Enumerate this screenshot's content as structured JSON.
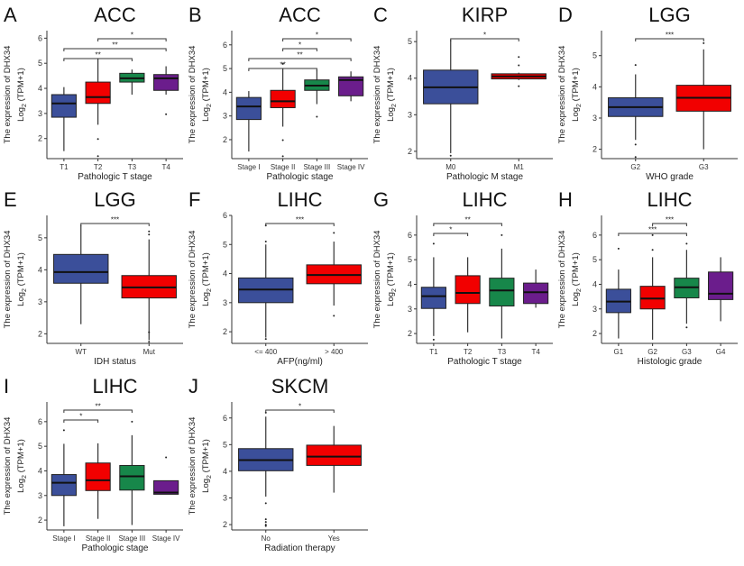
{
  "colors": {
    "blue": "#3b4f9a",
    "red": "#f20000",
    "green": "#17874a",
    "purple": "#6b1d8c"
  },
  "chart_data": [
    {
      "type": "box",
      "letter": "A",
      "title": "ACC",
      "xlabel": "Pathologic T stage",
      "ylabel": [
        "The expression of DHX34",
        "Log",
        "2",
        " (TPM+1)"
      ],
      "ylim": [
        1.2,
        6.3
      ],
      "yticks": [
        2,
        3,
        4,
        5,
        6
      ],
      "groups": [
        {
          "label": "T1",
          "color": "blue",
          "lo": 1.5,
          "q1": 2.85,
          "median": 3.4,
          "q3": 3.75,
          "hi": 4.05,
          "outliers": []
        },
        {
          "label": "T2",
          "color": "red",
          "lo": 2.55,
          "q1": 3.4,
          "median": 3.65,
          "q3": 4.25,
          "hi": 5.2,
          "outliers": [
            1.98,
            1.3
          ]
        },
        {
          "label": "T3",
          "color": "green",
          "lo": 3.75,
          "q1": 4.25,
          "median": 4.4,
          "q3": 4.6,
          "hi": 4.75,
          "outliers": []
        },
        {
          "label": "T4",
          "color": "purple",
          "lo": 3.75,
          "q1": 3.92,
          "median": 4.4,
          "q3": 4.55,
          "hi": 4.88,
          "outliers": [
            2.97
          ]
        }
      ],
      "brackets": [
        {
          "from": 0,
          "to": 2,
          "label": "**"
        },
        {
          "from": 0,
          "to": 3,
          "label": "**"
        },
        {
          "from": 1,
          "to": 3,
          "label": "*"
        }
      ]
    },
    {
      "type": "box",
      "letter": "B",
      "title": "ACC",
      "xlabel": "Pathologic stage",
      "ylabel": [
        "The expression of DHX34",
        "Log",
        "2",
        " (TPM+1)"
      ],
      "ylim": [
        1.2,
        6.6
      ],
      "yticks": [
        2,
        3,
        4,
        5,
        6
      ],
      "groups": [
        {
          "label": "Stage I",
          "color": "blue",
          "lo": 1.5,
          "q1": 2.85,
          "median": 3.4,
          "q3": 3.78,
          "hi": 4.05,
          "outliers": []
        },
        {
          "label": "Stage II",
          "color": "red",
          "lo": 2.55,
          "q1": 3.35,
          "median": 3.62,
          "q3": 4.08,
          "hi": 5.0,
          "outliers": [
            5.2,
            1.98,
            1.3
          ]
        },
        {
          "label": "Stage III",
          "color": "green",
          "lo": 3.5,
          "q1": 4.08,
          "median": 4.28,
          "q3": 4.52,
          "hi": 4.95,
          "outliers": [
            2.97
          ]
        },
        {
          "label": "Stage IV",
          "color": "purple",
          "lo": 3.62,
          "q1": 3.85,
          "median": 4.52,
          "q3": 4.65,
          "hi": 4.88,
          "outliers": []
        }
      ],
      "brackets": [
        {
          "from": 0,
          "to": 2,
          "label": "**"
        },
        {
          "from": 0,
          "to": 3,
          "label": "**"
        },
        {
          "from": 1,
          "to": 2,
          "label": "*"
        },
        {
          "from": 1,
          "to": 3,
          "label": "*"
        }
      ]
    },
    {
      "type": "box",
      "letter": "C",
      "title": "KIRP",
      "xlabel": "Pathologic M stage",
      "ylabel": [
        "The expression of DHX34",
        "Log",
        "2",
        " (TPM+1)"
      ],
      "ylim": [
        1.8,
        5.3
      ],
      "yticks": [
        2,
        3,
        4,
        5
      ],
      "groups": [
        {
          "label": "M0",
          "color": "blue",
          "lo": 1.95,
          "q1": 3.3,
          "median": 3.75,
          "q3": 4.22,
          "hi": 5.05,
          "outliers": [
            1.88
          ]
        },
        {
          "label": "M1",
          "color": "red",
          "lo": 3.95,
          "q1": 3.98,
          "median": 4.05,
          "q3": 4.12,
          "hi": 4.15,
          "outliers": [
            4.58,
            4.35,
            3.78
          ]
        }
      ],
      "brackets": [
        {
          "from": 0,
          "to": 1,
          "label": "*"
        }
      ]
    },
    {
      "type": "box",
      "letter": "D",
      "title": "LGG",
      "xlabel": "WHO grade",
      "ylabel": [
        "The expression of DHX34",
        "Log",
        "2",
        " (TPM+1)"
      ],
      "ylim": [
        1.7,
        5.8
      ],
      "yticks": [
        2,
        3,
        4,
        5
      ],
      "groups": [
        {
          "label": "G2",
          "color": "blue",
          "lo": 2.3,
          "q1": 3.05,
          "median": 3.35,
          "q3": 3.65,
          "hi": 4.4,
          "outliers": [
            4.7,
            2.15,
            1.75
          ]
        },
        {
          "label": "G3",
          "color": "red",
          "lo": 2.0,
          "q1": 3.22,
          "median": 3.65,
          "q3": 4.05,
          "hi": 5.2,
          "outliers": [
            5.4
          ]
        }
      ],
      "brackets": [
        {
          "from": 0,
          "to": 1,
          "label": "***"
        }
      ]
    },
    {
      "type": "box",
      "letter": "E",
      "title": "LGG",
      "xlabel": "IDH status",
      "ylabel": [
        "The expression of DHX34",
        "Log",
        "2",
        " (TPM+1)"
      ],
      "ylim": [
        1.7,
        5.7
      ],
      "yticks": [
        2,
        3,
        4,
        5
      ],
      "groups": [
        {
          "label": "WT",
          "color": "blue",
          "lo": 2.3,
          "q1": 3.58,
          "median": 3.93,
          "q3": 4.48,
          "hi": 5.4,
          "outliers": []
        },
        {
          "label": "Mut",
          "color": "red",
          "lo": 1.8,
          "q1": 3.12,
          "median": 3.45,
          "q3": 3.82,
          "hi": 4.95,
          "outliers": [
            5.2,
            5.1,
            2.05,
            1.75
          ]
        }
      ],
      "brackets": [
        {
          "from": 0,
          "to": 1,
          "label": "***"
        }
      ]
    },
    {
      "type": "box",
      "letter": "F",
      "title": "LIHC",
      "xlabel": "AFP(ng/ml)",
      "ylabel": [
        "The expression of DHX34",
        "Log",
        "2",
        " (TPM+1)"
      ],
      "ylim": [
        1.6,
        6.0
      ],
      "yticks": [
        2,
        3,
        4,
        5,
        6
      ],
      "groups": [
        {
          "label": "<= 400",
          "color": "blue",
          "lo": 1.8,
          "q1": 3.0,
          "median": 3.45,
          "q3": 3.85,
          "hi": 5.0,
          "outliers": [
            5.1,
            5.65,
            1.75
          ]
        },
        {
          "label": "> 400",
          "color": "red",
          "lo": 2.9,
          "q1": 3.65,
          "median": 3.95,
          "q3": 4.3,
          "hi": 5.1,
          "outliers": [
            5.4,
            2.55
          ]
        }
      ],
      "brackets": [
        {
          "from": 0,
          "to": 1,
          "label": "***"
        }
      ]
    },
    {
      "type": "box",
      "letter": "G",
      "title": "LIHC",
      "xlabel": "Pathologic T stage",
      "ylabel": [
        "The expression of DHX34",
        "Log",
        "2",
        " (TPM+1)"
      ],
      "ylim": [
        1.6,
        6.8
      ],
      "yticks": [
        2,
        3,
        4,
        5,
        6
      ],
      "groups": [
        {
          "label": "T1",
          "color": "blue",
          "lo": 1.9,
          "q1": 3.02,
          "median": 3.52,
          "q3": 3.88,
          "hi": 5.1,
          "outliers": [
            5.65,
            1.75
          ]
        },
        {
          "label": "T2",
          "color": "red",
          "lo": 2.05,
          "q1": 3.22,
          "median": 3.65,
          "q3": 4.35,
          "hi": 5.1,
          "outliers": []
        },
        {
          "label": "T3",
          "color": "green",
          "lo": 1.8,
          "q1": 3.12,
          "median": 3.75,
          "q3": 4.25,
          "hi": 5.45,
          "outliers": [
            6.0
          ]
        },
        {
          "label": "T4",
          "color": "purple",
          "lo": 3.05,
          "q1": 3.22,
          "median": 3.68,
          "q3": 4.05,
          "hi": 4.6,
          "outliers": []
        }
      ],
      "brackets": [
        {
          "from": 0,
          "to": 1,
          "label": "*"
        },
        {
          "from": 0,
          "to": 2,
          "label": "**"
        }
      ]
    },
    {
      "type": "box",
      "letter": "H",
      "title": "LIHC",
      "xlabel": "Histologic grade",
      "ylabel": [
        "The expression of DHX34",
        "Log",
        "2",
        " (TPM+1)"
      ],
      "ylim": [
        1.6,
        6.8
      ],
      "yticks": [
        2,
        3,
        4,
        5,
        6
      ],
      "groups": [
        {
          "label": "G1",
          "color": "blue",
          "lo": 1.8,
          "q1": 2.85,
          "median": 3.3,
          "q3": 3.8,
          "hi": 4.6,
          "outliers": [
            5.45
          ]
        },
        {
          "label": "G2",
          "color": "red",
          "lo": 1.75,
          "q1": 3.0,
          "median": 3.42,
          "q3": 3.92,
          "hi": 5.1,
          "outliers": [
            6.0,
            5.4
          ]
        },
        {
          "label": "G3",
          "color": "green",
          "lo": 2.4,
          "q1": 3.45,
          "median": 3.88,
          "q3": 4.25,
          "hi": 5.4,
          "outliers": [
            5.65,
            2.25
          ]
        },
        {
          "label": "G4",
          "color": "purple",
          "lo": 2.5,
          "q1": 3.38,
          "median": 3.62,
          "q3": 4.5,
          "hi": 5.1,
          "outliers": []
        }
      ],
      "brackets": [
        {
          "from": 0,
          "to": 2,
          "label": "***"
        },
        {
          "from": 1,
          "to": 2,
          "label": "***"
        }
      ]
    },
    {
      "type": "box",
      "letter": "I",
      "title": "LIHC",
      "xlabel": "Pathologic stage",
      "ylabel": [
        "The expression of DHX34",
        "Log",
        "2",
        " (TPM+1)"
      ],
      "ylim": [
        1.6,
        6.8
      ],
      "yticks": [
        2,
        3,
        4,
        5,
        6
      ],
      "groups": [
        {
          "label": "Stage I",
          "color": "blue",
          "lo": 1.75,
          "q1": 3.0,
          "median": 3.52,
          "q3": 3.85,
          "hi": 5.1,
          "outliers": [
            5.65
          ]
        },
        {
          "label": "Stage II",
          "color": "red",
          "lo": 2.05,
          "q1": 3.2,
          "median": 3.62,
          "q3": 4.32,
          "hi": 5.12,
          "outliers": []
        },
        {
          "label": "Stage III",
          "color": "green",
          "lo": 1.8,
          "q1": 3.22,
          "median": 3.78,
          "q3": 4.22,
          "hi": 5.45,
          "outliers": [
            6.0
          ]
        },
        {
          "label": "Stage IV",
          "color": "purple",
          "lo": 3.05,
          "q1": 3.05,
          "median": 3.12,
          "q3": 3.6,
          "hi": 3.6,
          "outliers": [
            4.55
          ]
        }
      ],
      "brackets": [
        {
          "from": 0,
          "to": 1,
          "label": "*"
        },
        {
          "from": 0,
          "to": 2,
          "label": "**"
        }
      ]
    },
    {
      "type": "box",
      "letter": "J",
      "title": "SKCM",
      "xlabel": "Radiation therapy",
      "ylabel": [
        "The expression of DHX34",
        "Log",
        "2",
        " (TPM+1)"
      ],
      "ylim": [
        1.8,
        6.6
      ],
      "yticks": [
        2,
        3,
        4,
        5,
        6
      ],
      "groups": [
        {
          "label": "No",
          "color": "blue",
          "lo": 3.05,
          "q1": 4.02,
          "median": 4.42,
          "q3": 4.85,
          "hi": 6.05,
          "outliers": [
            6.2,
            2.8,
            2.2,
            2.1,
            2.0,
            1.95
          ]
        },
        {
          "label": "Yes",
          "color": "red",
          "lo": 3.2,
          "q1": 4.22,
          "median": 4.55,
          "q3": 4.98,
          "hi": 5.7,
          "outliers": []
        }
      ],
      "brackets": [
        {
          "from": 0,
          "to": 1,
          "label": "*"
        }
      ]
    }
  ]
}
